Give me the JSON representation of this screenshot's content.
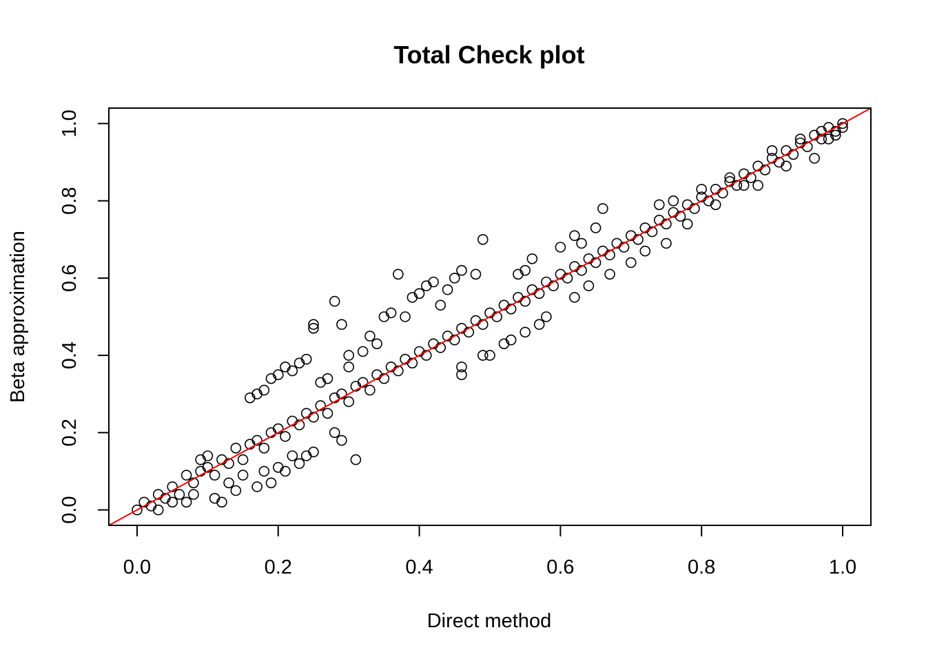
{
  "chart_data": {
    "type": "scatter",
    "title": "Total Check plot",
    "xlabel": "Direct method",
    "ylabel": "Beta approximation",
    "xlim": [
      -0.04,
      1.04
    ],
    "ylim": [
      -0.04,
      1.04
    ],
    "xticks": [
      {
        "value": 0.0,
        "label": "0.0"
      },
      {
        "value": 0.2,
        "label": "0.2"
      },
      {
        "value": 0.4,
        "label": "0.4"
      },
      {
        "value": 0.6,
        "label": "0.6"
      },
      {
        "value": 0.8,
        "label": "0.8"
      },
      {
        "value": 1.0,
        "label": "1.0"
      }
    ],
    "yticks": [
      {
        "value": 0.0,
        "label": "0.0"
      },
      {
        "value": 0.2,
        "label": "0.2"
      },
      {
        "value": 0.4,
        "label": "0.4"
      },
      {
        "value": 0.6,
        "label": "0.6"
      },
      {
        "value": 0.8,
        "label": "0.8"
      },
      {
        "value": 1.0,
        "label": "1.0"
      }
    ],
    "grid": false,
    "marker": "open-circle",
    "reference_line": {
      "intercept": 0,
      "slope": 1,
      "color": "#ff0000"
    },
    "series": [
      {
        "points": [
          [
            0.0,
            0.0
          ],
          [
            0.01,
            0.02
          ],
          [
            0.02,
            0.01
          ],
          [
            0.03,
            0.04
          ],
          [
            0.04,
            0.03
          ],
          [
            0.05,
            0.06
          ],
          [
            0.06,
            0.04
          ],
          [
            0.07,
            0.09
          ],
          [
            0.08,
            0.07
          ],
          [
            0.09,
            0.1
          ],
          [
            0.1,
            0.11
          ],
          [
            0.11,
            0.09
          ],
          [
            0.12,
            0.13
          ],
          [
            0.13,
            0.12
          ],
          [
            0.14,
            0.16
          ],
          [
            0.15,
            0.13
          ],
          [
            0.16,
            0.17
          ],
          [
            0.17,
            0.18
          ],
          [
            0.18,
            0.16
          ],
          [
            0.19,
            0.2
          ],
          [
            0.2,
            0.21
          ],
          [
            0.21,
            0.19
          ],
          [
            0.22,
            0.23
          ],
          [
            0.23,
            0.22
          ],
          [
            0.24,
            0.25
          ],
          [
            0.25,
            0.24
          ],
          [
            0.26,
            0.27
          ],
          [
            0.27,
            0.25
          ],
          [
            0.28,
            0.29
          ],
          [
            0.29,
            0.3
          ],
          [
            0.3,
            0.28
          ],
          [
            0.31,
            0.32
          ],
          [
            0.32,
            0.33
          ],
          [
            0.33,
            0.31
          ],
          [
            0.34,
            0.35
          ],
          [
            0.35,
            0.34
          ],
          [
            0.36,
            0.37
          ],
          [
            0.37,
            0.36
          ],
          [
            0.38,
            0.39
          ],
          [
            0.39,
            0.38
          ],
          [
            0.4,
            0.41
          ],
          [
            0.41,
            0.4
          ],
          [
            0.42,
            0.43
          ],
          [
            0.43,
            0.42
          ],
          [
            0.44,
            0.45
          ],
          [
            0.45,
            0.44
          ],
          [
            0.46,
            0.47
          ],
          [
            0.47,
            0.46
          ],
          [
            0.48,
            0.49
          ],
          [
            0.49,
            0.48
          ],
          [
            0.5,
            0.51
          ],
          [
            0.51,
            0.5
          ],
          [
            0.52,
            0.53
          ],
          [
            0.53,
            0.52
          ],
          [
            0.54,
            0.55
          ],
          [
            0.55,
            0.54
          ],
          [
            0.56,
            0.57
          ],
          [
            0.57,
            0.56
          ],
          [
            0.58,
            0.59
          ],
          [
            0.59,
            0.58
          ],
          [
            0.6,
            0.61
          ],
          [
            0.61,
            0.6
          ],
          [
            0.62,
            0.63
          ],
          [
            0.63,
            0.62
          ],
          [
            0.64,
            0.65
          ],
          [
            0.65,
            0.64
          ],
          [
            0.66,
            0.67
          ],
          [
            0.67,
            0.66
          ],
          [
            0.68,
            0.69
          ],
          [
            0.69,
            0.68
          ],
          [
            0.7,
            0.71
          ],
          [
            0.71,
            0.7
          ],
          [
            0.72,
            0.73
          ],
          [
            0.73,
            0.72
          ],
          [
            0.74,
            0.75
          ],
          [
            0.75,
            0.74
          ],
          [
            0.76,
            0.77
          ],
          [
            0.77,
            0.76
          ],
          [
            0.78,
            0.79
          ],
          [
            0.79,
            0.78
          ],
          [
            0.8,
            0.81
          ],
          [
            0.81,
            0.8
          ],
          [
            0.82,
            0.83
          ],
          [
            0.83,
            0.82
          ],
          [
            0.84,
            0.85
          ],
          [
            0.85,
            0.84
          ],
          [
            0.86,
            0.87
          ],
          [
            0.87,
            0.86
          ],
          [
            0.88,
            0.89
          ],
          [
            0.89,
            0.88
          ],
          [
            0.9,
            0.91
          ],
          [
            0.91,
            0.9
          ],
          [
            0.92,
            0.93
          ],
          [
            0.93,
            0.92
          ],
          [
            0.94,
            0.95
          ],
          [
            0.95,
            0.94
          ],
          [
            0.96,
            0.97
          ],
          [
            0.97,
            0.96
          ],
          [
            0.98,
            0.99
          ],
          [
            0.99,
            0.98
          ],
          [
            1.0,
            1.0
          ],
          [
            0.03,
            0.0
          ],
          [
            0.05,
            0.02
          ],
          [
            0.07,
            0.02
          ],
          [
            0.08,
            0.04
          ],
          [
            0.09,
            0.13
          ],
          [
            0.1,
            0.14
          ],
          [
            0.11,
            0.03
          ],
          [
            0.12,
            0.02
          ],
          [
            0.13,
            0.07
          ],
          [
            0.14,
            0.05
          ],
          [
            0.15,
            0.09
          ],
          [
            0.17,
            0.06
          ],
          [
            0.18,
            0.1
          ],
          [
            0.19,
            0.07
          ],
          [
            0.2,
            0.11
          ],
          [
            0.21,
            0.1
          ],
          [
            0.22,
            0.14
          ],
          [
            0.23,
            0.12
          ],
          [
            0.24,
            0.14
          ],
          [
            0.25,
            0.15
          ],
          [
            0.16,
            0.29
          ],
          [
            0.17,
            0.3
          ],
          [
            0.18,
            0.31
          ],
          [
            0.19,
            0.34
          ],
          [
            0.2,
            0.35
          ],
          [
            0.21,
            0.37
          ],
          [
            0.22,
            0.36
          ],
          [
            0.23,
            0.38
          ],
          [
            0.24,
            0.39
          ],
          [
            0.25,
            0.47
          ],
          [
            0.25,
            0.48
          ],
          [
            0.28,
            0.54
          ],
          [
            0.29,
            0.48
          ],
          [
            0.3,
            0.4
          ],
          [
            0.31,
            0.13
          ],
          [
            0.29,
            0.18
          ],
          [
            0.28,
            0.2
          ],
          [
            0.26,
            0.33
          ],
          [
            0.27,
            0.34
          ],
          [
            0.3,
            0.37
          ],
          [
            0.32,
            0.41
          ],
          [
            0.33,
            0.45
          ],
          [
            0.34,
            0.43
          ],
          [
            0.35,
            0.5
          ],
          [
            0.36,
            0.51
          ],
          [
            0.37,
            0.61
          ],
          [
            0.38,
            0.5
          ],
          [
            0.39,
            0.55
          ],
          [
            0.4,
            0.56
          ],
          [
            0.41,
            0.58
          ],
          [
            0.42,
            0.59
          ],
          [
            0.43,
            0.53
          ],
          [
            0.44,
            0.57
          ],
          [
            0.45,
            0.6
          ],
          [
            0.46,
            0.62
          ],
          [
            0.49,
            0.7
          ],
          [
            0.48,
            0.61
          ],
          [
            0.46,
            0.35
          ],
          [
            0.46,
            0.37
          ],
          [
            0.49,
            0.4
          ],
          [
            0.5,
            0.4
          ],
          [
            0.52,
            0.43
          ],
          [
            0.53,
            0.44
          ],
          [
            0.55,
            0.46
          ],
          [
            0.57,
            0.48
          ],
          [
            0.58,
            0.5
          ],
          [
            0.55,
            0.62
          ],
          [
            0.56,
            0.65
          ],
          [
            0.54,
            0.61
          ],
          [
            0.6,
            0.68
          ],
          [
            0.62,
            0.71
          ],
          [
            0.63,
            0.69
          ],
          [
            0.65,
            0.73
          ],
          [
            0.66,
            0.78
          ],
          [
            0.62,
            0.55
          ],
          [
            0.64,
            0.58
          ],
          [
            0.67,
            0.61
          ],
          [
            0.7,
            0.64
          ],
          [
            0.72,
            0.67
          ],
          [
            0.74,
            0.79
          ],
          [
            0.75,
            0.69
          ],
          [
            0.76,
            0.8
          ],
          [
            0.78,
            0.74
          ],
          [
            0.8,
            0.83
          ],
          [
            0.82,
            0.79
          ],
          [
            0.84,
            0.86
          ],
          [
            0.86,
            0.84
          ],
          [
            0.88,
            0.84
          ],
          [
            0.9,
            0.93
          ],
          [
            0.92,
            0.89
          ],
          [
            0.94,
            0.96
          ],
          [
            0.96,
            0.91
          ],
          [
            0.97,
            0.98
          ],
          [
            0.98,
            0.96
          ],
          [
            0.99,
            0.97
          ],
          [
            1.0,
            0.99
          ]
        ]
      }
    ]
  }
}
